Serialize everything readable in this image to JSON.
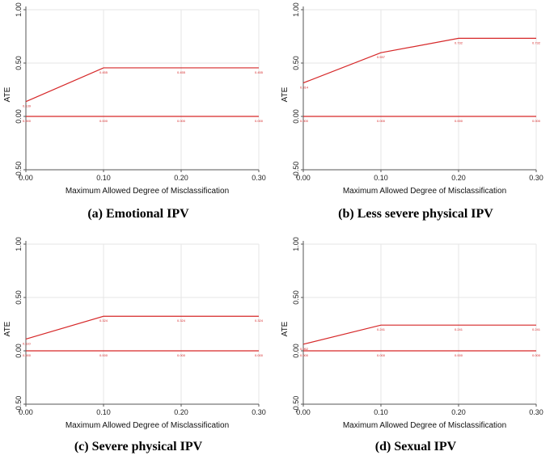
{
  "chart_data": [
    {
      "type": "line",
      "caption": "(a) Emotional IPV",
      "xlabel": "Maximum Allowed Degree of Misclassification",
      "ylabel": "ATE",
      "xlim": [
        0,
        0.3
      ],
      "ylim": [
        -0.5,
        1.0
      ],
      "xticks": [
        "0.00",
        "0.10",
        "0.20",
        "0.30"
      ],
      "yticks": [
        "-0.50",
        "0.00",
        "0.50",
        "1.00"
      ],
      "grid": true,
      "series": [
        {
          "x": [
            0,
            0.1,
            0.2,
            0.3
          ],
          "y": [
            0.139,
            0.455,
            0.455,
            0.455
          ],
          "labels": [
            "0.139",
            "0.455",
            "0.455",
            "0.455"
          ]
        },
        {
          "x": [
            0,
            0.1,
            0.2,
            0.3
          ],
          "y": [
            0.0,
            0.0,
            0.0,
            0.0
          ],
          "labels": [
            "0.000",
            "0.000",
            "0.000",
            "0.000"
          ]
        }
      ]
    },
    {
      "type": "line",
      "caption": "(b) Less severe physical IPV",
      "xlabel": "Maximum Allowed Degree of Misclassification",
      "ylabel": "ATE",
      "xlim": [
        0,
        0.3
      ],
      "ylim": [
        -0.5,
        1.0
      ],
      "xticks": [
        "0.00",
        "0.10",
        "0.20",
        "0.30"
      ],
      "yticks": [
        "-0.50",
        "0.00",
        "0.50",
        "1.00"
      ],
      "grid": true,
      "series": [
        {
          "x": [
            0,
            0.1,
            0.2,
            0.3
          ],
          "y": [
            0.314,
            0.597,
            0.732,
            0.732
          ],
          "labels": [
            "0.314",
            "0.597",
            "0.732",
            "0.732"
          ]
        },
        {
          "x": [
            0,
            0.1,
            0.2,
            0.3
          ],
          "y": [
            0.0,
            0.0,
            0.0,
            0.0
          ],
          "labels": [
            "0.000",
            "0.000",
            "0.000",
            "0.000"
          ]
        }
      ]
    },
    {
      "type": "line",
      "caption": "(c) Severe physical IPV",
      "xlabel": "Maximum Allowed Degree of Misclassification",
      "ylabel": "ATE",
      "xlim": [
        0,
        0.3
      ],
      "ylim": [
        -0.5,
        1.0
      ],
      "xticks": [
        "0.00",
        "0.10",
        "0.20",
        "0.30"
      ],
      "yticks": [
        "-0.50",
        "0.00",
        "0.50",
        "1.00"
      ],
      "grid": true,
      "series": [
        {
          "x": [
            0,
            0.1,
            0.2,
            0.3
          ],
          "y": [
            0.11,
            0.324,
            0.324,
            0.324
          ],
          "labels": [
            "0.110",
            "0.324",
            "0.324",
            "0.324"
          ]
        },
        {
          "x": [
            0,
            0.1,
            0.2,
            0.3
          ],
          "y": [
            0.0,
            0.0,
            0.0,
            0.0
          ],
          "labels": [
            "0.000",
            "0.000",
            "0.000",
            "0.000"
          ]
        }
      ]
    },
    {
      "type": "line",
      "caption": "(d) Sexual IPV",
      "xlabel": "Maximum Allowed Degree of Misclassification",
      "ylabel": "ATE",
      "xlim": [
        0,
        0.3
      ],
      "ylim": [
        -0.5,
        1.0
      ],
      "xticks": [
        "0.00",
        "0.10",
        "0.20",
        "0.30"
      ],
      "yticks": [
        "-0.50",
        "0.00",
        "0.50",
        "1.00"
      ],
      "grid": true,
      "series": [
        {
          "x": [
            0,
            0.1,
            0.2,
            0.3
          ],
          "y": [
            0.062,
            0.241,
            0.241,
            0.241
          ],
          "labels": [
            "0.062",
            "0.241",
            "0.241",
            "0.241"
          ]
        },
        {
          "x": [
            0,
            0.1,
            0.2,
            0.3
          ],
          "y": [
            0.0,
            0.0,
            0.0,
            0.0
          ],
          "labels": [
            "0.000",
            "0.000",
            "0.000",
            "0.000"
          ]
        }
      ]
    }
  ],
  "colors": {
    "line": "#d62728",
    "grid": "#e6e6e6",
    "axis": "#555555"
  }
}
